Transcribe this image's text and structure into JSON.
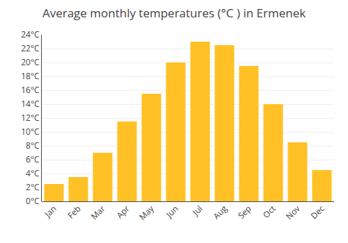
{
  "chart_data": {
    "type": "bar",
    "title": "Average monthly temperatures (°C ) in Ermenek",
    "categories": [
      "Jan",
      "Feb",
      "Mar",
      "Apr",
      "May",
      "Jun",
      "Jul",
      "Aug",
      "Sep",
      "Oct",
      "Nov",
      "Dec"
    ],
    "values": [
      2.5,
      3.5,
      7.0,
      11.5,
      15.5,
      20.0,
      23.0,
      22.5,
      19.5,
      14.0,
      8.5,
      4.5
    ],
    "color": "#FFC125",
    "ylim": [
      0,
      24
    ],
    "yticks": [
      {
        "value": 0,
        "label": "0°C"
      },
      {
        "value": 2,
        "label": "2°C"
      },
      {
        "value": 4,
        "label": "4°C"
      },
      {
        "value": 6,
        "label": "6°C"
      },
      {
        "value": 8,
        "label": "8°C"
      },
      {
        "value": 10,
        "label": "10°C"
      },
      {
        "value": 12,
        "label": "12°C"
      },
      {
        "value": 14,
        "label": "14°C"
      },
      {
        "value": 16,
        "label": "16°C"
      },
      {
        "value": 18,
        "label": "18°C"
      },
      {
        "value": 20,
        "label": "20°C"
      },
      {
        "value": 22,
        "label": "22°C"
      },
      {
        "value": 24,
        "label": "24°C"
      }
    ],
    "grid": true
  }
}
